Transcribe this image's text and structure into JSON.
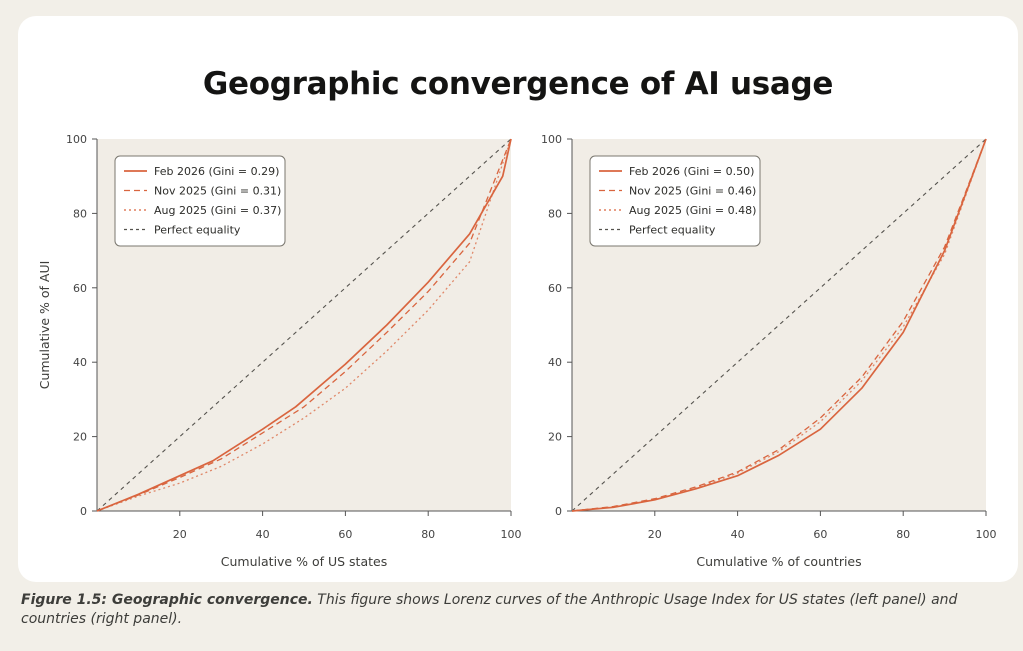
{
  "title": "Geographic convergence of AI usage",
  "caption": {
    "bold": "Figure 1.5: Geographic convergence.",
    "text": " This figure shows Lorenz curves of the Anthropic Usage Index for US states (left panel) and countries (right panel)."
  },
  "colors": {
    "series": "#d9653f",
    "equality": "#55534e",
    "axis": "#555",
    "grid": "#f1ede6"
  },
  "chart_data": [
    {
      "type": "line",
      "xlabel": "Cumulative % of US states",
      "ylabel": "Cumulative % of AUI",
      "xlim": [
        0,
        100
      ],
      "ylim": [
        0,
        100
      ],
      "xticks": [
        20,
        40,
        60,
        80,
        100
      ],
      "yticks": [
        0,
        20,
        40,
        60,
        80,
        100
      ],
      "legend_position": "top-left",
      "series": [
        {
          "name": "Feb 2026 (Gini = 0.29)",
          "style": "solid",
          "x": [
            0,
            10,
            20,
            28,
            40,
            48,
            60,
            70,
            80,
            90,
            98,
            100
          ],
          "y": [
            0,
            4.5,
            9.5,
            13.5,
            22,
            28,
            39.5,
            50,
            61.5,
            74.5,
            90,
            100
          ]
        },
        {
          "name": "Nov 2025 (Gini = 0.31)",
          "style": "dashed",
          "x": [
            0,
            10,
            20,
            30,
            40,
            50,
            60,
            70,
            80,
            90,
            100
          ],
          "y": [
            0,
            4.3,
            9,
            14,
            21,
            28,
            37.5,
            48,
            59,
            72,
            100
          ]
        },
        {
          "name": "Aug 2025 (Gini = 0.37)",
          "style": "dotted",
          "x": [
            0,
            10,
            20,
            30,
            40,
            50,
            60,
            70,
            80,
            90,
            100
          ],
          "y": [
            0,
            4,
            7.5,
            12,
            18,
            25,
            33,
            43,
            54,
            67,
            100
          ]
        },
        {
          "name": "Perfect equality",
          "style": "equality",
          "x": [
            0,
            100
          ],
          "y": [
            0,
            100
          ]
        }
      ]
    },
    {
      "type": "line",
      "xlabel": "Cumulative % of countries",
      "ylabel": "",
      "xlim": [
        0,
        100
      ],
      "ylim": [
        0,
        100
      ],
      "xticks": [
        20,
        40,
        60,
        80,
        100
      ],
      "yticks": [
        0,
        20,
        40,
        60,
        80,
        100
      ],
      "legend_position": "top-left",
      "series": [
        {
          "name": "Feb 2026 (Gini = 0.50)",
          "style": "solid",
          "x": [
            0,
            10,
            20,
            30,
            40,
            50,
            60,
            70,
            80,
            90,
            100
          ],
          "y": [
            0,
            1,
            3,
            6,
            9.5,
            15,
            22,
            33,
            48,
            70,
            100
          ]
        },
        {
          "name": "Nov 2025 (Gini = 0.46)",
          "style": "dashed",
          "x": [
            0,
            10,
            20,
            30,
            40,
            50,
            60,
            70,
            80,
            90,
            100
          ],
          "y": [
            0,
            1.2,
            3.3,
            6.5,
            10.5,
            16.5,
            25,
            36,
            51,
            71,
            100
          ]
        },
        {
          "name": "Aug 2025 (Gini = 0.48)",
          "style": "dotted",
          "x": [
            0,
            10,
            20,
            30,
            40,
            50,
            60,
            70,
            80,
            90,
            100
          ],
          "y": [
            0,
            1.1,
            3.1,
            6.2,
            10.2,
            16,
            24,
            35,
            49.5,
            69,
            100
          ]
        },
        {
          "name": "Perfect equality",
          "style": "equality",
          "x": [
            0,
            100
          ],
          "y": [
            0,
            100
          ]
        }
      ]
    }
  ]
}
